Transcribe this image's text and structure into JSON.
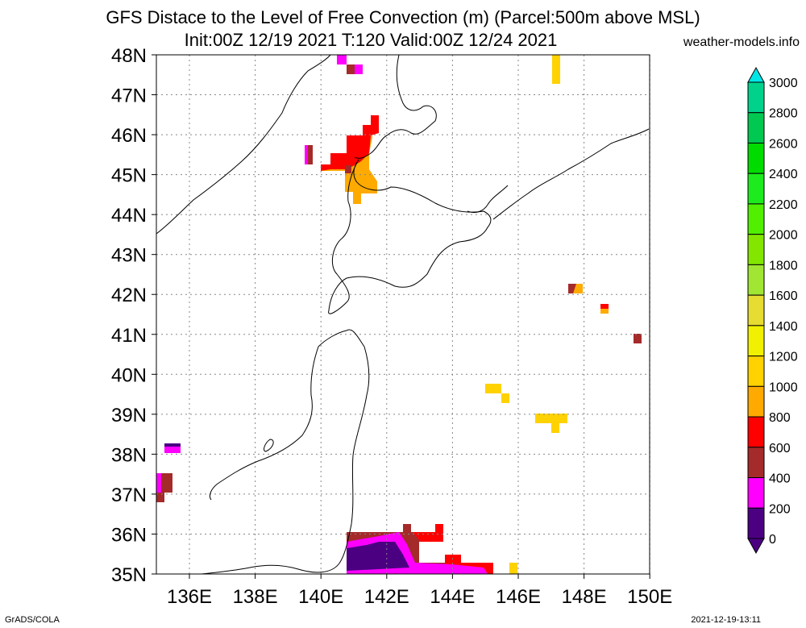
{
  "title": {
    "line1": "GFS Distace to the Level of Free Convection (m) (Parcel:500m above MSL)",
    "line2": "Init:00Z 12/19 2021 T:120 Valid:00Z 12/24 2021"
  },
  "site": "weather-models.info",
  "footer": {
    "left": "GrADS/COLA",
    "right": "2021-12-19-13:11"
  },
  "axes": {
    "lat_labels": [
      "48N",
      "47N",
      "46N",
      "45N",
      "44N",
      "43N",
      "42N",
      "41N",
      "40N",
      "39N",
      "38N",
      "37N",
      "36N",
      "35N"
    ],
    "lon_labels": [
      "136E",
      "138E",
      "140E",
      "142E",
      "144E",
      "146E",
      "148E",
      "150E"
    ]
  },
  "colorbar": {
    "labels": [
      "3000",
      "2800",
      "2600",
      "2400",
      "2200",
      "2000",
      "1800",
      "1600",
      "1400",
      "1200",
      "1000",
      "800",
      "600",
      "400",
      "200",
      "0"
    ],
    "colors": [
      "#00e6e6",
      "#00d28c",
      "#00c850",
      "#00dc00",
      "#1eeb1e",
      "#50f000",
      "#82e600",
      "#a0e632",
      "#e6dc32",
      "#f0f000",
      "#ffd200",
      "#ffaa00",
      "#ff0000",
      "#a52a2a",
      "#ff00ff",
      "#4b0082"
    ]
  },
  "field": {
    "variable": "Distance to the Level of Free Convection",
    "units": "m",
    "region": "Northern Japan / Hokkaido"
  }
}
